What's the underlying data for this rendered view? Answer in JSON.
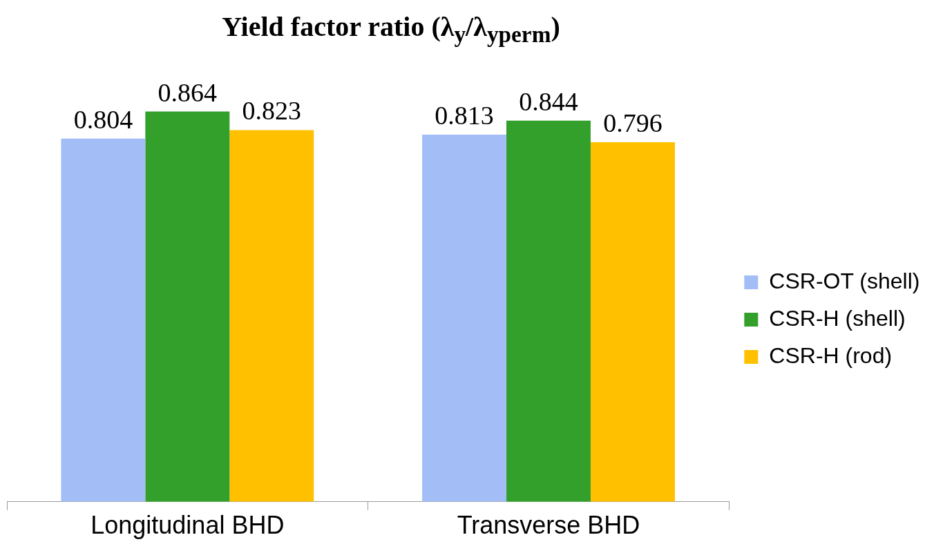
{
  "chart_data": {
    "type": "bar",
    "title": "Yield factor ratio (λ$_{y}$/λ$_{yperm}$)",
    "categories": [
      "Longitudinal BHD",
      "Transverse BHD"
    ],
    "series": [
      {
        "name": "CSR-OT (shell)",
        "color": "#a3bdf7",
        "values": [
          0.804,
          0.813
        ]
      },
      {
        "name": "CSR-H (shell)",
        "color": "#33a02c",
        "values": [
          0.864,
          0.844
        ]
      },
      {
        "name": "CSR-H (rod)",
        "color": "#ffc000",
        "values": [
          0.823,
          0.796
        ]
      }
    ],
    "data_labels": true,
    "legend": "right"
  }
}
